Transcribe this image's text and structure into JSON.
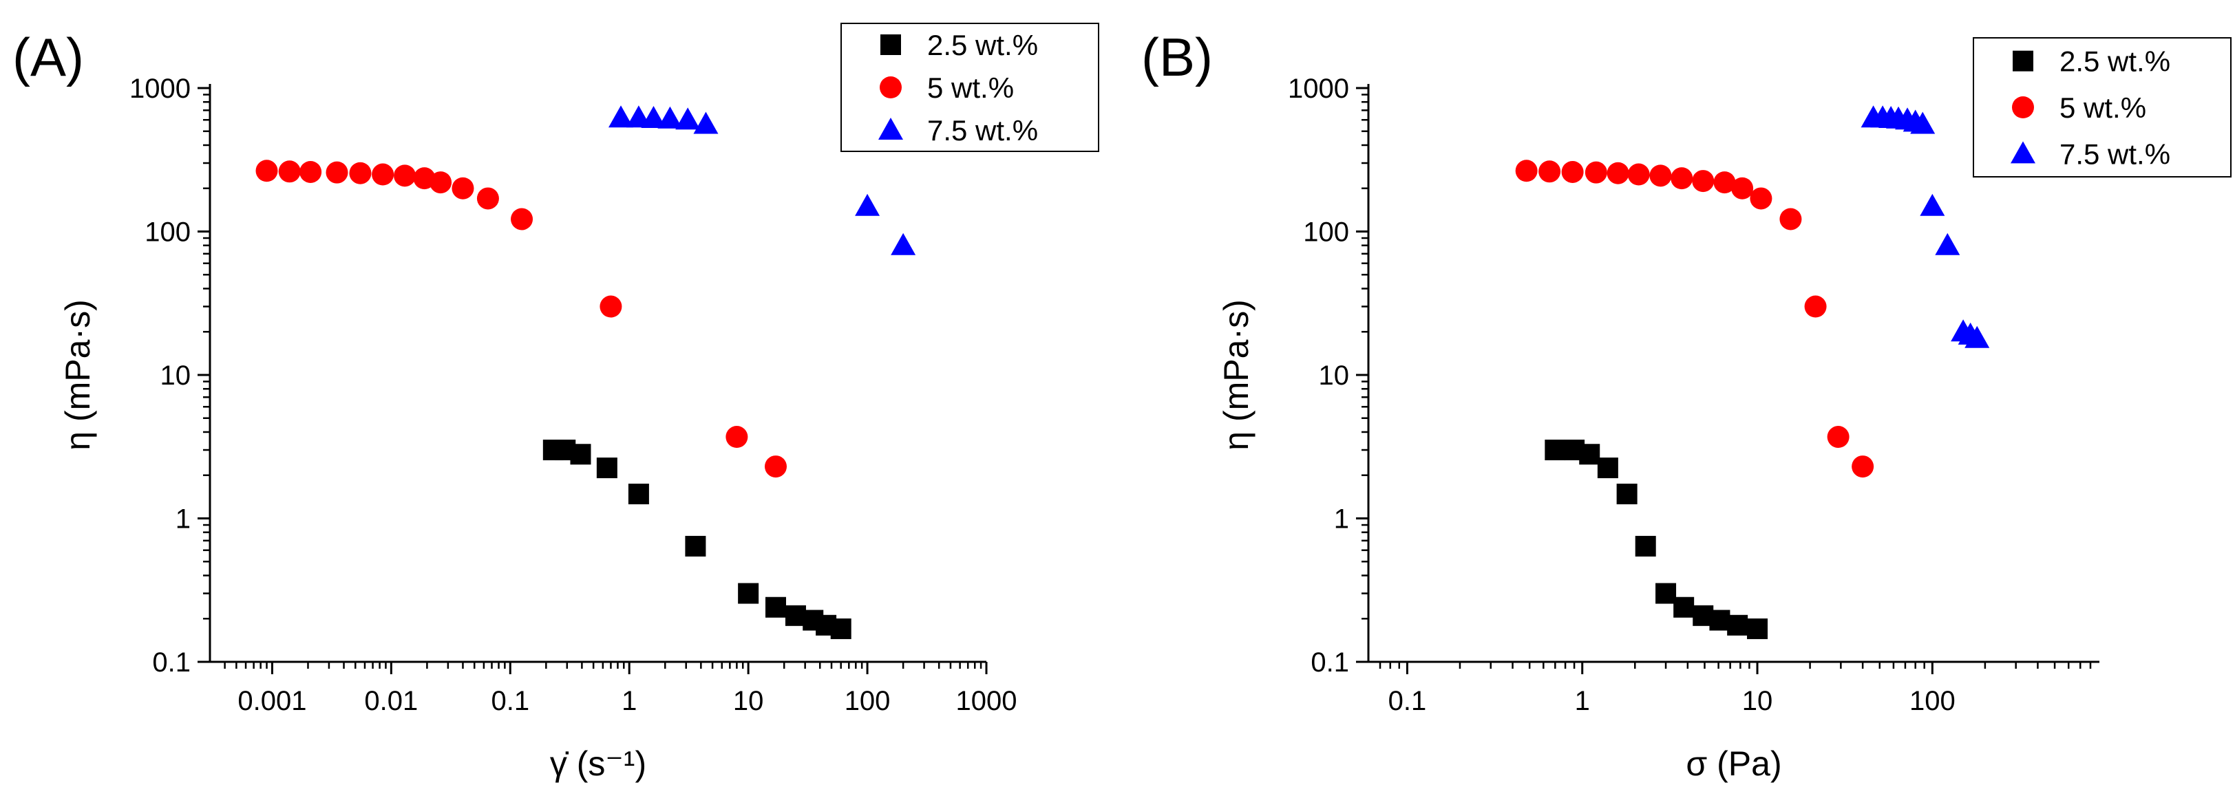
{
  "figure": {
    "panels": [
      "(A)",
      "(B)"
    ]
  },
  "colors": {
    "series_2_5": "#000000",
    "series_5": "#ff0000",
    "series_7_5": "#0000ff",
    "axis": "#000000",
    "background": "#ffffff"
  },
  "chart_data": [
    {
      "type": "scatter",
      "panel": "(A)",
      "title": "",
      "xlabel": "γ̇ (s⁻¹)",
      "ylabel": "η (mPa·s)",
      "xscale": "log",
      "yscale": "log",
      "xlim": [
        0.0003,
        1000
      ],
      "ylim": [
        0.1,
        1000
      ],
      "xticks": [
        0.001,
        0.01,
        0.1,
        1,
        10,
        100,
        1000
      ],
      "xtick_labels": [
        "0.001",
        "0.01",
        "0.1",
        "1",
        "10",
        "100",
        "1000"
      ],
      "yticks": [
        0.1,
        1,
        10,
        100,
        1000
      ],
      "ytick_labels": [
        "0.1",
        "1",
        "10",
        "100",
        "1000"
      ],
      "legend_position": "top-right",
      "series": [
        {
          "name": "2.5 wt.%",
          "marker": "square",
          "color": "#000000",
          "x": [
            0.23,
            0.29,
            0.39,
            0.65,
            1.2,
            3.6,
            10,
            17,
            25,
            35,
            45,
            60
          ],
          "y": [
            3.0,
            3.0,
            2.8,
            2.25,
            1.48,
            0.64,
            0.3,
            0.24,
            0.21,
            0.195,
            0.18,
            0.17
          ]
        },
        {
          "name": "5 wt.%",
          "marker": "circle",
          "color": "#ff0000",
          "x": [
            0.0009,
            0.0014,
            0.0021,
            0.0035,
            0.0055,
            0.0085,
            0.013,
            0.019,
            0.026,
            0.04,
            0.065,
            0.125,
            0.7,
            8,
            17
          ],
          "y": [
            265,
            262,
            260,
            258,
            255,
            250,
            245,
            235,
            220,
            200,
            170,
            122,
            30,
            3.7,
            2.3
          ]
        },
        {
          "name": "7.5 wt.%",
          "marker": "triangle",
          "color": "#0000ff",
          "x": [
            0.85,
            1.2,
            1.6,
            2.2,
            3.1,
            4.4,
            100,
            200
          ],
          "y": [
            620,
            620,
            615,
            610,
            600,
            560,
            150,
            80
          ]
        }
      ]
    },
    {
      "type": "scatter",
      "panel": "(B)",
      "title": "",
      "xlabel": "σ (Pa)",
      "ylabel": "η (mPa·s)",
      "xscale": "log",
      "yscale": "log",
      "xlim": [
        0.06,
        900
      ],
      "ylim": [
        0.1,
        1000
      ],
      "xticks": [
        0.1,
        1,
        10,
        100
      ],
      "xtick_labels": [
        "0.1",
        "1",
        "10",
        "100"
      ],
      "yticks": [
        0.1,
        1,
        10,
        100,
        1000
      ],
      "ytick_labels": [
        "0.1",
        "1",
        "10",
        "100",
        "1000"
      ],
      "legend_position": "top-right",
      "series": [
        {
          "name": "2.5 wt.%",
          "marker": "square",
          "color": "#000000",
          "x": [
            0.7,
            0.9,
            1.1,
            1.4,
            1.8,
            2.3,
            3.0,
            3.8,
            4.9,
            6.1,
            7.7,
            10
          ],
          "y": [
            3.0,
            3.0,
            2.8,
            2.25,
            1.48,
            0.64,
            0.3,
            0.24,
            0.21,
            0.195,
            0.18,
            0.17
          ]
        },
        {
          "name": "5 wt.%",
          "marker": "circle",
          "color": "#ff0000",
          "x": [
            0.48,
            0.65,
            0.88,
            1.2,
            1.6,
            2.1,
            2.8,
            3.7,
            4.9,
            6.5,
            8.2,
            10.5,
            15.5,
            21.5,
            29,
            40
          ],
          "y": [
            265,
            262,
            260,
            258,
            255,
            250,
            245,
            235,
            225,
            220,
            200,
            170,
            122,
            30,
            3.7,
            2.3
          ]
        },
        {
          "name": "7.5 wt.%",
          "marker": "triangle",
          "color": "#0000ff",
          "x": [
            46,
            52,
            58,
            64,
            72,
            80,
            88,
            100,
            122,
            150,
            165,
            180
          ],
          "y": [
            620,
            620,
            615,
            610,
            600,
            580,
            560,
            150,
            80,
            20,
            19,
            18
          ]
        }
      ]
    }
  ]
}
